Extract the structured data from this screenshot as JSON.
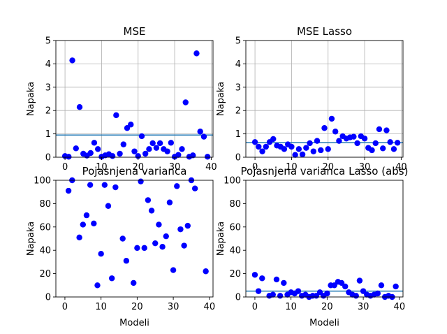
{
  "colors": {
    "point": "#0000ff",
    "line": "#1f77b4",
    "grid": "#b0b0b0"
  },
  "chart_data": [
    {
      "type": "scatter",
      "title": "MSE",
      "xlabel": "",
      "ylabel": "Napaka",
      "xlim": [
        -2.5,
        40.5
      ],
      "ylim": [
        0,
        5
      ],
      "xticks": [
        0,
        10,
        20,
        30,
        40
      ],
      "yticks": [
        0,
        1,
        2,
        3,
        4,
        5
      ],
      "grid": true,
      "hline": 0.95,
      "x": [
        0,
        1,
        2,
        3,
        4,
        5,
        6,
        7,
        8,
        9,
        10,
        11,
        12,
        13,
        14,
        15,
        16,
        17,
        18,
        19,
        20,
        21,
        22,
        23,
        24,
        25,
        26,
        27,
        28,
        29,
        30,
        31,
        32,
        33,
        34,
        35,
        36,
        37,
        38,
        39
      ],
      "y": [
        0.05,
        0.02,
        4.15,
        0.38,
        2.15,
        0.15,
        0.07,
        0.18,
        0.62,
        0.35,
        0.02,
        0.08,
        0.13,
        0.05,
        1.8,
        0.15,
        0.55,
        1.25,
        1.4,
        0.25,
        0.05,
        0.9,
        0.15,
        0.35,
        0.6,
        0.4,
        0.6,
        0.35,
        0.25,
        0.62,
        0.02,
        0.1,
        0.35,
        2.35,
        0.02,
        0.08,
        4.45,
        1.1,
        0.88,
        0.02
      ]
    },
    {
      "type": "scatter",
      "title": "MSE Lasso",
      "xlabel": "",
      "ylabel": "Napaka",
      "xlim": [
        -2.5,
        40.5
      ],
      "ylim": [
        0,
        5
      ],
      "xticks": [
        0,
        10,
        20,
        30,
        40
      ],
      "yticks": [
        0,
        1,
        2,
        3,
        4,
        5
      ],
      "grid": true,
      "hline": 0.62,
      "x": [
        0,
        1,
        2,
        3,
        4,
        5,
        6,
        7,
        8,
        9,
        10,
        11,
        12,
        13,
        14,
        15,
        16,
        17,
        18,
        19,
        20,
        21,
        22,
        23,
        24,
        25,
        26,
        27,
        28,
        29,
        30,
        31,
        32,
        33,
        34,
        35,
        36,
        37,
        38,
        39
      ],
      "y": [
        0.65,
        0.45,
        0.25,
        0.45,
        0.65,
        0.78,
        0.5,
        0.45,
        0.35,
        0.55,
        0.45,
        0.1,
        0.35,
        0.12,
        0.4,
        0.6,
        0.25,
        0.7,
        0.3,
        1.25,
        0.35,
        1.65,
        1.1,
        0.7,
        0.9,
        0.8,
        0.85,
        0.88,
        0.6,
        0.9,
        0.8,
        0.4,
        0.3,
        0.6,
        1.2,
        0.38,
        1.15,
        0.65,
        0.35,
        0.62
      ]
    },
    {
      "type": "scatter",
      "title": "Pojasnjena varianca",
      "xlabel": "Modeli",
      "ylabel": "Napaka",
      "xlim": [
        -2.5,
        41
      ],
      "ylim": [
        0,
        100
      ],
      "xticks": [
        0,
        10,
        20,
        30,
        40
      ],
      "yticks": [
        0,
        20,
        40,
        60,
        80,
        100
      ],
      "grid": false,
      "x": [
        1,
        2,
        4,
        5,
        6,
        7,
        8,
        9,
        10,
        11,
        12,
        13,
        14,
        16,
        17,
        19,
        20,
        21,
        22,
        23,
        24,
        25,
        26,
        27,
        28,
        29,
        30,
        31,
        32,
        33,
        34,
        35,
        36,
        39
      ],
      "y": [
        91,
        100,
        51,
        62,
        70,
        96,
        63,
        10,
        37,
        96,
        78,
        16,
        94,
        50,
        31,
        12,
        42,
        99,
        42,
        83,
        74,
        46,
        62,
        43,
        52,
        81,
        23,
        95,
        58,
        44,
        61,
        100,
        93,
        22
      ]
    },
    {
      "type": "scatter",
      "title": "Pojasnjena varianca Lasso (abs)",
      "xlabel": "Modeli",
      "ylabel": "Napaka",
      "xlim": [
        -2.5,
        41
      ],
      "ylim": [
        0,
        100
      ],
      "xticks": [
        0,
        10,
        20,
        30,
        40
      ],
      "yticks": [
        0,
        20,
        40,
        60,
        80,
        100
      ],
      "grid": false,
      "hline": 5,
      "x": [
        0,
        1,
        2,
        4,
        5,
        6,
        7,
        8,
        9,
        10,
        11,
        12,
        13,
        14,
        15,
        16,
        17,
        18,
        19,
        20,
        21,
        22,
        23,
        24,
        25,
        26,
        27,
        28,
        29,
        30,
        31,
        32,
        33,
        34,
        35,
        36,
        37,
        38,
        39
      ],
      "y": [
        19,
        5,
        16,
        1,
        2,
        15,
        1,
        12,
        2,
        4,
        3,
        5,
        1,
        2,
        0,
        1,
        1,
        4,
        1,
        3,
        10,
        10,
        13,
        12,
        9,
        4,
        2,
        1,
        14,
        5,
        2,
        1,
        2,
        3,
        10,
        0,
        1,
        0,
        9
      ]
    }
  ]
}
